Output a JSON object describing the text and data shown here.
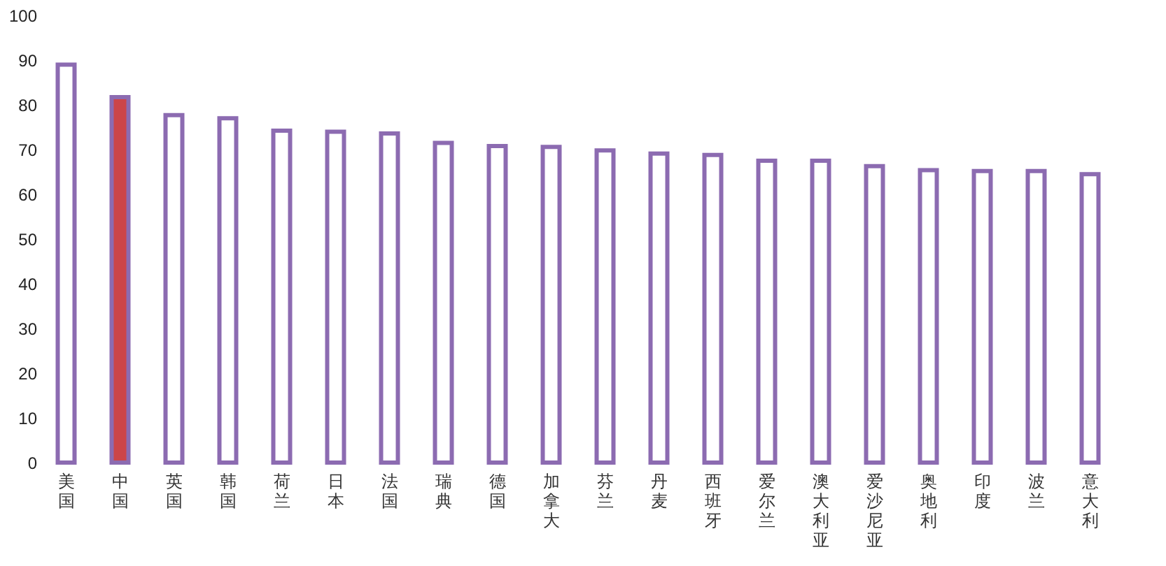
{
  "chart_data": {
    "type": "bar",
    "categories": [
      "美国",
      "中国",
      "英国",
      "韩国",
      "荷兰",
      "日本",
      "法国",
      "瑞典",
      "德国",
      "加拿大",
      "芬兰",
      "丹麦",
      "西班牙",
      "爱尔兰",
      "澳大利亚",
      "爱沙尼亚",
      "奥地利",
      "印度",
      "波兰",
      "意大利"
    ],
    "values": [
      89.0,
      81.7,
      77.7,
      77.0,
      74.2,
      74.0,
      73.6,
      71.5,
      70.8,
      70.6,
      69.8,
      69.1,
      68.8,
      67.5,
      67.5,
      66.3,
      65.4,
      65.2,
      65.2,
      64.5
    ],
    "color": "#8c6bb1",
    "colors": [
      "#ffffff",
      "#cc4549",
      "#ffffff",
      "#ffffff",
      "#ffffff",
      "#ffffff",
      "#ffffff",
      "#ffffff",
      "#ffffff",
      "#ffffff",
      "#ffffff",
      "#ffffff",
      "#ffffff",
      "#ffffff",
      "#ffffff",
      "#ffffff",
      "#ffffff",
      "#ffffff",
      "#ffffff",
      "#ffffff"
    ],
    "ylim": [
      0,
      100
    ],
    "yticks": [
      0,
      10,
      20,
      30,
      40,
      50,
      60,
      70,
      80,
      90,
      100
    ],
    "grid": false
  }
}
